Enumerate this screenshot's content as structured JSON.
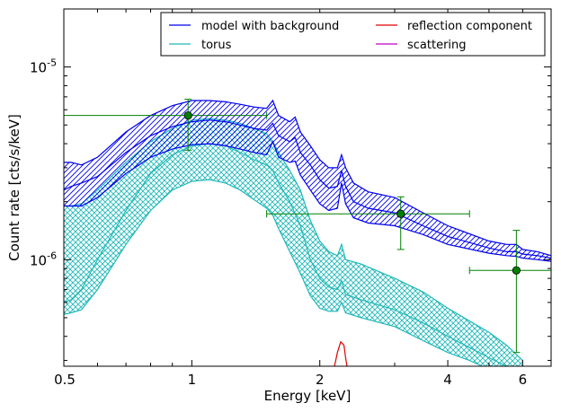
{
  "chart_data": {
    "type": "line",
    "xlabel": "Energy [keV]",
    "ylabel": "Count rate [cts/s/keV]",
    "xscale": "log",
    "yscale": "log",
    "xlim": [
      0.5,
      7.0
    ],
    "ylim": [
      2.8e-07,
      2e-05
    ],
    "x_ticks": [
      {
        "value": 0.5,
        "label": "0.5"
      },
      {
        "value": 1,
        "label": "1"
      },
      {
        "value": 2,
        "label": "2"
      },
      {
        "value": 4,
        "label": "4"
      },
      {
        "value": 6,
        "label": "6"
      }
    ],
    "y_ticks": [
      {
        "value": 1e-06,
        "base": "10",
        "exp": "-6"
      },
      {
        "value": 1e-05,
        "base": "10",
        "exp": "-5"
      }
    ],
    "legend": {
      "placement": "top-right",
      "columns": 2,
      "entries": [
        {
          "label": "model with background",
          "color": "#0000ee"
        },
        {
          "label": "torus",
          "color": "#20b8b8"
        },
        {
          "label": "reflection component",
          "color": "#e00000"
        },
        {
          "label": "scattering",
          "color": "#c000c0"
        }
      ]
    },
    "model_band": {
      "color": "#0000ee",
      "x": [
        0.5,
        0.52,
        0.55,
        0.6,
        0.7,
        0.8,
        0.9,
        1.0,
        1.1,
        1.2,
        1.3,
        1.4,
        1.5,
        1.55,
        1.6,
        1.7,
        1.75,
        1.8,
        1.9,
        2.0,
        2.1,
        2.2,
        2.25,
        2.3,
        2.4,
        2.6,
        3.0,
        3.5,
        4.0,
        5.0,
        5.5,
        5.8,
        6.0,
        6.5,
        7.0
      ],
      "upper": [
        3.2e-06,
        3.2e-06,
        3.1e-06,
        3.4e-06,
        4.6e-06,
        5.6e-06,
        6.3e-06,
        6.7e-06,
        6.7e-06,
        6.6e-06,
        6.4e-06,
        6.2e-06,
        6.1e-06,
        6.7e-06,
        5.6e-06,
        5.2e-06,
        5.5e-06,
        4.6e-06,
        3.9e-06,
        3.3e-06,
        3e-06,
        3e-06,
        3.5e-06,
        3e-06,
        2.5e-06,
        2.25e-06,
        2.1e-06,
        1.75e-06,
        1.5e-06,
        1.25e-06,
        1.2e-06,
        1.2e-06,
        1.13e-06,
        1.1e-06,
        1.05e-06
      ],
      "center": [
        2.3e-06,
        2.4e-06,
        2.5e-06,
        2.7e-06,
        3.6e-06,
        4.4e-06,
        4.9e-06,
        5.2e-06,
        5.3e-06,
        5.2e-06,
        5e-06,
        4.8e-06,
        4.7e-06,
        5.1e-06,
        4.4e-06,
        4.1e-06,
        4.3e-06,
        3.6e-06,
        3.1e-06,
        2.6e-06,
        2.35e-06,
        2.4e-06,
        2.9e-06,
        2.4e-06,
        2e-06,
        1.85e-06,
        1.75e-06,
        1.5e-06,
        1.32e-06,
        1.15e-06,
        1.1e-06,
        1.1e-06,
        1.07e-06,
        1.05e-06,
        1.02e-06
      ],
      "lower": [
        1.9e-06,
        1.9e-06,
        1.9e-06,
        2.1e-06,
        2.8e-06,
        3.4e-06,
        3.75e-06,
        3.95e-06,
        4e-06,
        3.9e-06,
        3.75e-06,
        3.6e-06,
        3.5e-06,
        4.1e-06,
        3.4e-06,
        3.2e-06,
        3.25e-06,
        2.75e-06,
        2.3e-06,
        1.95e-06,
        1.8e-06,
        1.85e-06,
        2.5e-06,
        1.95e-06,
        1.65e-06,
        1.55e-06,
        1.5e-06,
        1.35e-06,
        1.2e-06,
        1.08e-06,
        1.05e-06,
        1.04e-06,
        1.02e-06,
        1e-06,
        9.8e-07
      ]
    },
    "torus_band": {
      "color": "#20b8b8",
      "x": [
        0.5,
        0.52,
        0.55,
        0.6,
        0.7,
        0.8,
        0.9,
        1.0,
        1.1,
        1.2,
        1.3,
        1.4,
        1.5,
        1.55,
        1.6,
        1.7,
        1.8,
        1.9,
        2.0,
        2.1,
        2.2,
        2.25,
        2.3,
        2.5,
        3.0,
        3.5,
        4.0,
        4.5,
        5.0,
        5.5,
        6.0
      ],
      "upper": [
        1.9e-06,
        1.9e-06,
        1.95e-06,
        2.3e-06,
        3.2e-06,
        4.1e-06,
        4.8e-06,
        5.3e-06,
        5.4e-06,
        5.3e-06,
        5.1e-06,
        4.8e-06,
        4.5e-06,
        4.1e-06,
        3.6e-06,
        2.9e-06,
        2.3e-06,
        1.6e-06,
        1.25e-06,
        1.1e-06,
        1.05e-06,
        1.2e-06,
        1e-06,
        9.5e-07,
        8e-07,
        6.8e-07,
        5.6e-07,
        4.8e-07,
        4.2e-07,
        3.6e-07,
        3e-07
      ],
      "center": [
        6e-07,
        6.2e-07,
        7e-07,
        1e-06,
        1.8e-06,
        2.8e-06,
        3.5e-06,
        3.9e-06,
        4e-06,
        3.9e-06,
        3.6e-06,
        3.3e-06,
        3.1e-06,
        2.9e-06,
        2.5e-06,
        2e-06,
        1.5e-06,
        1e-06,
        8e-07,
        7.2e-07,
        7e-07,
        7.8e-07,
        6.6e-07,
        6.2e-07,
        5.5e-07,
        4.7e-07,
        4e-07,
        3.5e-07,
        3.1e-07,
        2.8e-07,
        2.6e-07
      ],
      "lower": [
        5.2e-07,
        5.3e-07,
        5.5e-07,
        7e-07,
        1.2e-06,
        1.8e-06,
        2.3e-06,
        2.55e-06,
        2.6e-06,
        2.5e-06,
        2.3e-06,
        2.05e-06,
        1.85e-06,
        1.7e-06,
        1.45e-06,
        1.1e-06,
        8.5e-07,
        6.5e-07,
        5.6e-07,
        5.4e-07,
        5.4e-07,
        6e-07,
        5.3e-07,
        5e-07,
        4.5e-07,
        3.8e-07,
        3.3e-07,
        3e-07,
        2.7e-07,
        2.5e-07,
        2.3e-07
      ]
    },
    "reflection": {
      "color": "#e00000",
      "x": [
        2.15,
        2.2,
        2.24,
        2.28,
        2.3,
        2.33
      ],
      "y": [
        2.6e-07,
        3.3e-07,
        3.75e-07,
        3.6e-07,
        3.1e-07,
        2.6e-07
      ]
    },
    "data_points": {
      "color": "#008000",
      "points": [
        {
          "x": 0.98,
          "y": 5.6e-06,
          "xerr": [
            0.5,
            1.5
          ],
          "yerr": [
            3.7e-06,
            6.8e-06
          ]
        },
        {
          "x": 3.1,
          "y": 1.73e-06,
          "xerr": [
            1.5,
            4.5
          ],
          "yerr": [
            1.13e-06,
            2.12e-06
          ]
        },
        {
          "x": 5.8,
          "y": 8.8e-07,
          "xerr": [
            4.5,
            7.0
          ],
          "yerr": [
            3.3e-07,
            1.42e-06
          ]
        }
      ]
    }
  }
}
